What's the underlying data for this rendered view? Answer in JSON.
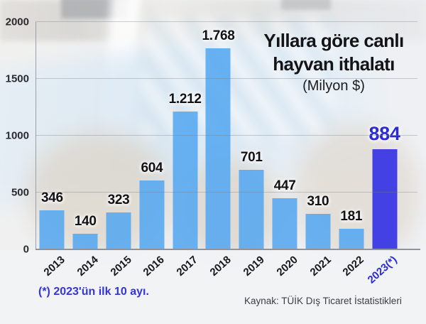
{
  "title": {
    "line1": "Yıllara göre canlı",
    "line2": "hayvan ithalatı",
    "subtitle": "(Milyon $)"
  },
  "footnote": "(*) 2023'ün ilk 10 ayı.",
  "source": "Kaynak: TÜİK Dış Ticaret İstatistikleri",
  "colors": {
    "bar": "#55a7f0",
    "highlight_bar": "#4341e4",
    "highlight_text": "#2a2ad6",
    "value_label": "#121215",
    "footnote_text": "#3434d8"
  },
  "chart_data": {
    "type": "bar",
    "title": "Yıllara göre canlı hayvan ithalatı",
    "subtitle": "(Milyon $)",
    "xlabel": "",
    "ylabel": "",
    "categories": [
      "2013",
      "2014",
      "2015",
      "2016",
      "2017",
      "2018",
      "2019",
      "2020",
      "2021",
      "2022",
      "2023(*)"
    ],
    "values": [
      346,
      140,
      323,
      604,
      1212,
      1768,
      701,
      447,
      310,
      181,
      884
    ],
    "value_labels": [
      "346",
      "140",
      "323",
      "604",
      "1.212",
      "1.768",
      "701",
      "447",
      "310",
      "181",
      "884"
    ],
    "highlight_index": 10,
    "ylim": [
      0,
      2000
    ],
    "yticks": [
      2000,
      1500,
      1000,
      500,
      0
    ],
    "grid": "horizontal",
    "legend": "none"
  }
}
